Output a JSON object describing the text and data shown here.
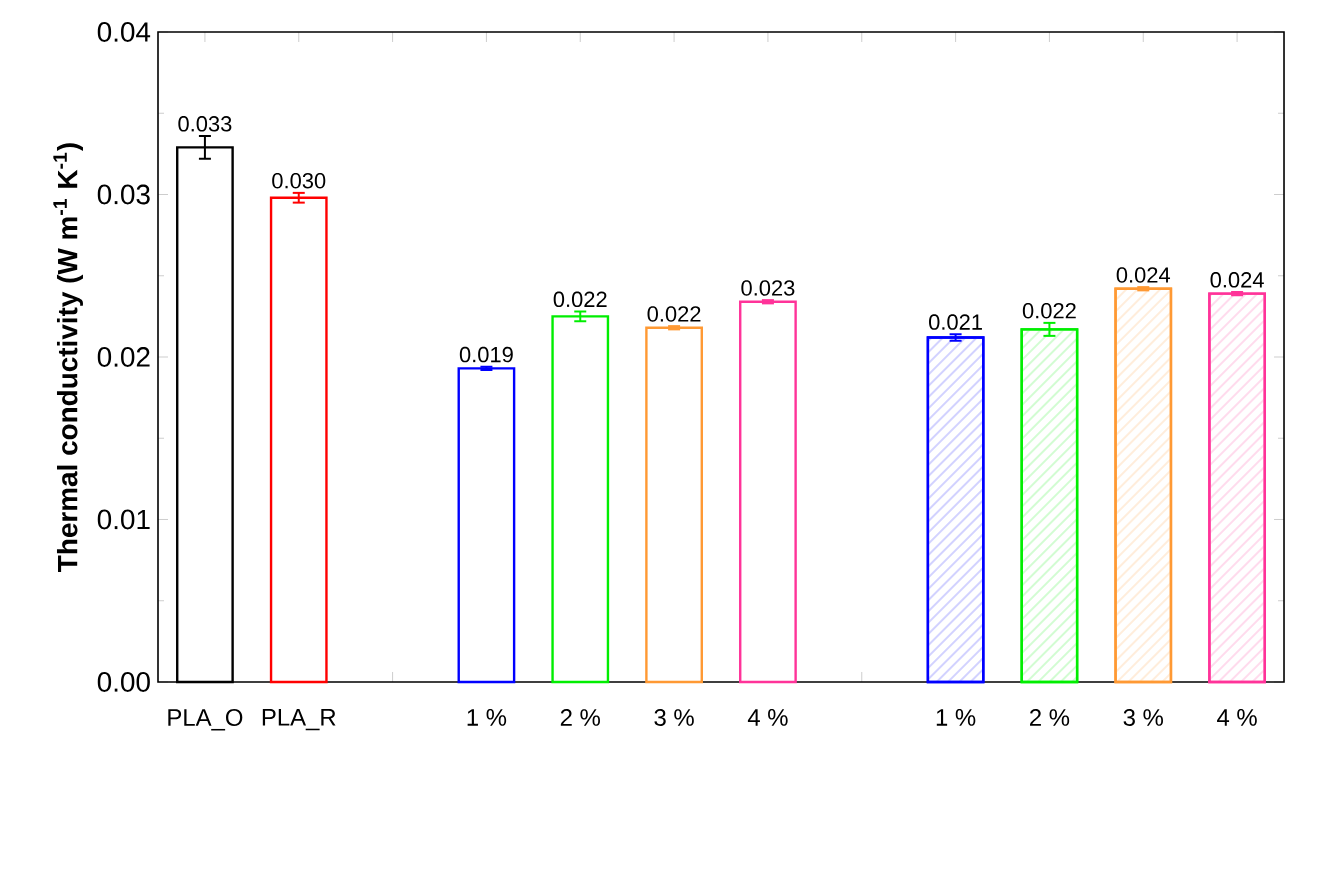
{
  "chart_data": {
    "type": "bar",
    "ylabel": "Thermal conductivity (W m$^{-1}$ K$^{-1}$)",
    "categories": [
      "PLA_O",
      "PLA_R",
      null,
      "1 %",
      "2 %",
      "3 %",
      "4 %",
      null,
      "1 %",
      "2 %",
      "3 %",
      "4 %"
    ],
    "series": [
      {
        "colors": [
          "#000000",
          "#ff0000",
          null,
          "#0000ff",
          "#00ee00",
          "#ff9933",
          "#ff3399",
          null,
          null,
          null,
          null,
          null
        ],
        "values": [
          0.0329,
          0.0298,
          null,
          0.0193,
          0.0225,
          0.0218,
          0.0234,
          null,
          null,
          null,
          null,
          null
        ],
        "errors": [
          0.0007,
          0.0003,
          null,
          0.0001,
          0.0003,
          0.0001,
          0.0001,
          null,
          null,
          null,
          null,
          null
        ],
        "value_labels": [
          "0.033",
          "0.030",
          null,
          "0.019",
          "0.022",
          "0.022",
          "0.023",
          null,
          null,
          null,
          null,
          null
        ]
      },
      {
        "colors": [
          null,
          null,
          null,
          null,
          null,
          null,
          null,
          null,
          "#0000ff",
          "#00ee00",
          "#ff9933",
          "#ff3399"
        ],
        "values": [
          null,
          null,
          null,
          null,
          null,
          null,
          null,
          null,
          0.0212,
          0.0217,
          0.0242,
          0.0239
        ],
        "errors": [
          null,
          null,
          null,
          null,
          null,
          null,
          null,
          null,
          0.0002,
          0.0004,
          0.0001,
          0.0001
        ],
        "value_labels": [
          null,
          null,
          null,
          null,
          null,
          null,
          null,
          null,
          "0.021",
          "0.022",
          "0.024",
          "0.024"
        ]
      }
    ],
    "ylim": [
      0,
      0.04
    ],
    "yticks": [
      {
        "value": 0,
        "label": "0.00"
      },
      {
        "value": 0.01,
        "label": "0.01"
      },
      {
        "value": 0.02,
        "label": "0.02"
      },
      {
        "value": 0.03,
        "label": "0.03"
      },
      {
        "value": 0.04,
        "label": "0.04"
      }
    ],
    "tick_labels": "xy"
  }
}
